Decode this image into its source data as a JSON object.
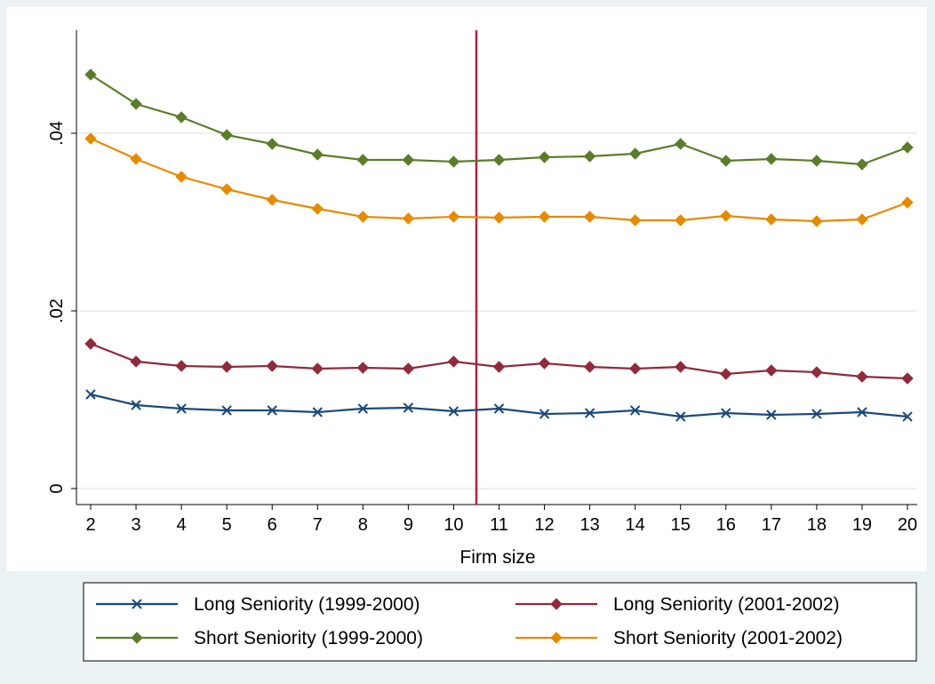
{
  "chart_data": {
    "type": "line",
    "title": "",
    "xlabel": "Firm size",
    "ylabel": "",
    "x": [
      2,
      3,
      4,
      5,
      6,
      7,
      8,
      9,
      10,
      11,
      12,
      13,
      14,
      15,
      16,
      17,
      18,
      19,
      20
    ],
    "xlim": [
      2,
      20
    ],
    "ylim": [
      0,
      0.05
    ],
    "y_ticks": [
      0,
      0.02,
      0.04
    ],
    "y_tick_labels": [
      "0",
      ".02",
      ".04"
    ],
    "grid": "horizontal",
    "legend_position": "bottom",
    "reference_line": {
      "x": 10.5,
      "color": "#b0213c"
    },
    "series": [
      {
        "name": "Long Seniority (1999-2000)",
        "color": "#1a4a7a",
        "marker": "x",
        "values": [
          0.0106,
          0.0094,
          0.009,
          0.0088,
          0.0088,
          0.0086,
          0.009,
          0.0091,
          0.0087,
          0.009,
          0.0084,
          0.0085,
          0.0088,
          0.0081,
          0.0085,
          0.0083,
          0.0084,
          0.0086,
          0.0081
        ]
      },
      {
        "name": "Long Seniority (2001-2002)",
        "color": "#8f2b3b",
        "marker": "diamond",
        "values": [
          0.0163,
          0.0143,
          0.0138,
          0.0137,
          0.0138,
          0.0135,
          0.0136,
          0.0135,
          0.0143,
          0.0137,
          0.0141,
          0.0137,
          0.0135,
          0.0137,
          0.0129,
          0.0133,
          0.0131,
          0.0126,
          0.0124
        ]
      },
      {
        "name": "Short Seniority (1999-2000)",
        "color": "#5a7d2a",
        "marker": "diamond",
        "values": [
          0.0466,
          0.0433,
          0.0418,
          0.0398,
          0.0388,
          0.0376,
          0.037,
          0.037,
          0.0368,
          0.037,
          0.0373,
          0.0374,
          0.0377,
          0.0388,
          0.0369,
          0.0371,
          0.0369,
          0.0365,
          0.0384
        ]
      },
      {
        "name": "Short Seniority (2001-2002)",
        "color": "#e68a00",
        "marker": "diamond",
        "values": [
          0.0394,
          0.0371,
          0.0351,
          0.0337,
          0.0325,
          0.0315,
          0.0306,
          0.0304,
          0.0306,
          0.0305,
          0.0306,
          0.0306,
          0.0302,
          0.0302,
          0.0307,
          0.0303,
          0.0301,
          0.0303,
          0.0322
        ]
      }
    ]
  }
}
